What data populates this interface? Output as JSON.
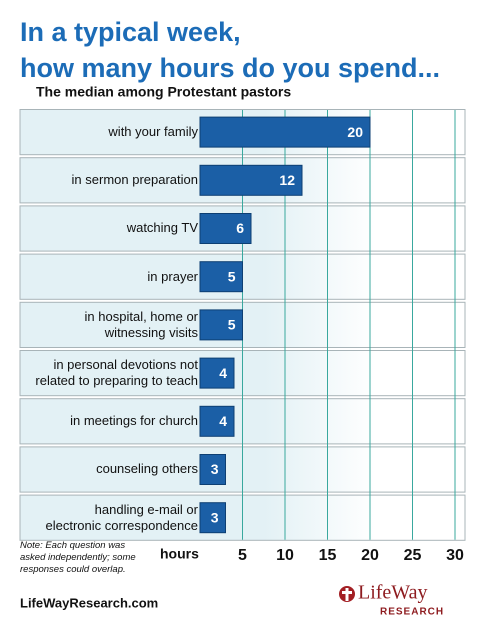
{
  "chart_data": {
    "type": "bar",
    "title": [
      "In a typical week,",
      "how many hours do you spend..."
    ],
    "subtitle": "The median among Protestant pastors",
    "categories": [
      "with your family",
      "in sermon preparation",
      "watching TV",
      "in prayer",
      "in hospital, home or\nwitnessing visits",
      "in personal devotions not\nrelated to preparing to teach",
      "in meetings for church",
      "counseling others",
      "handling e-mail or\nelectronic correspondence"
    ],
    "values": [
      20,
      12,
      6,
      5,
      5,
      4,
      4,
      3,
      3
    ],
    "color": "#1b5fa6",
    "xlim": [
      0,
      30
    ],
    "xticks": [
      5,
      10,
      15,
      20,
      25,
      30
    ],
    "grid": true,
    "x_label": "hours",
    "note": "Note: Each question was\nasked independently; some\nresponses could overlap.",
    "source": "LifeWayResearch.com",
    "logo": [
      "LifeWay",
      "RESEARCH"
    ]
  }
}
